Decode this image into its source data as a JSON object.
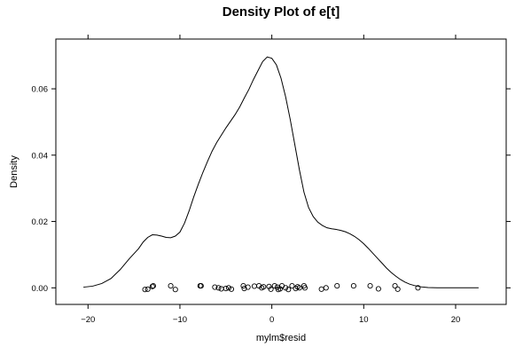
{
  "chart_data": {
    "type": "line",
    "title": "Density Plot of e[t]",
    "xlabel": "mylm$resid",
    "ylabel": "Density",
    "xlim": [
      -23.5,
      25.5
    ],
    "ylim": [
      -0.005,
      0.075
    ],
    "x_ticks": [
      -20,
      -10,
      0,
      10,
      20
    ],
    "x_tick_labels": [
      "−20",
      "−10",
      "0",
      "10",
      "20"
    ],
    "y_ticks": [
      0.0,
      0.02,
      0.04,
      0.06
    ],
    "y_tick_labels": [
      "0.00",
      "0.02",
      "0.04",
      "0.06"
    ],
    "grid": false,
    "series": [
      {
        "kind": "density",
        "x": [
          -20.5,
          -19.5,
          -18.5,
          -17.5,
          -16.5,
          -15.5,
          -14.5,
          -14,
          -13.5,
          -13,
          -12.5,
          -12,
          -11.5,
          -11,
          -10.5,
          -10,
          -9.5,
          -9,
          -8.5,
          -8,
          -7.5,
          -7,
          -6.5,
          -6,
          -5.5,
          -5,
          -4.5,
          -4,
          -3.5,
          -3,
          -2.5,
          -2,
          -1.5,
          -1,
          -0.5,
          0,
          0.5,
          1,
          1.5,
          2,
          2.5,
          3,
          3.5,
          4,
          4.5,
          5,
          5.5,
          6,
          6.5,
          7,
          7.5,
          8,
          8.5,
          9,
          9.5,
          10,
          10.5,
          11,
          11.5,
          12,
          12.5,
          13,
          13.5,
          14,
          14.5,
          15,
          15.5,
          16,
          16.5,
          17,
          17.5,
          18,
          18.5,
          19,
          19.5,
          20,
          20.5,
          21,
          21.5,
          22,
          22.5
        ],
        "y": [
          0.0002,
          0.0005,
          0.0013,
          0.0028,
          0.0055,
          0.0088,
          0.0118,
          0.0138,
          0.0152,
          0.016,
          0.0159,
          0.0156,
          0.0152,
          0.0151,
          0.0156,
          0.0168,
          0.0195,
          0.0232,
          0.0274,
          0.0312,
          0.0348,
          0.0381,
          0.0412,
          0.0438,
          0.046,
          0.0482,
          0.0502,
          0.0522,
          0.0545,
          0.0572,
          0.0598,
          0.0628,
          0.0655,
          0.0682,
          0.0696,
          0.0692,
          0.0672,
          0.0632,
          0.0576,
          0.0508,
          0.0432,
          0.0356,
          0.0288,
          0.0242,
          0.0215,
          0.0198,
          0.0188,
          0.0181,
          0.0178,
          0.0176,
          0.0173,
          0.0169,
          0.0163,
          0.0155,
          0.0145,
          0.0133,
          0.0119,
          0.0104,
          0.0089,
          0.0074,
          0.0059,
          0.0046,
          0.0035,
          0.0025,
          0.0017,
          0.0011,
          0.0007,
          0.0004,
          0.0002,
          0.0001,
          5e-05,
          2e-05,
          1e-05,
          0,
          0,
          0,
          0,
          0,
          0,
          0,
          0
        ]
      },
      {
        "kind": "rug-points",
        "x": [
          -13.8,
          -13.5,
          -13.0,
          -12.9,
          -11.0,
          -10.5,
          -7.8,
          -7.7,
          -6.2,
          -5.8,
          -5.5,
          -5.0,
          -4.7,
          -4.4,
          -3.1,
          -3.0,
          -2.6,
          -1.9,
          -1.4,
          -1.1,
          -0.9,
          -0.3,
          -0.1,
          0.3,
          0.6,
          0.7,
          0.9,
          1.1,
          1.5,
          1.8,
          2.2,
          2.6,
          2.8,
          3.0,
          3.5,
          3.6,
          5.4,
          5.9,
          7.1,
          8.9,
          10.7,
          11.6,
          13.4,
          13.7,
          15.9
        ],
        "y": [
          -0.0005,
          -0.0004,
          0.0004,
          0.0006,
          0.0006,
          -0.0005,
          0.0006,
          0.0006,
          0.0002,
          0.0,
          -0.0003,
          -0.0002,
          0.0,
          -0.0004,
          0.0006,
          -0.0002,
          0.0002,
          0.0005,
          0.0006,
          0.0,
          0.0003,
          0.0004,
          -0.0004,
          0.0006,
          0.0002,
          -0.0005,
          -0.0003,
          0.0006,
          0.0,
          -0.0005,
          0.0006,
          -0.0002,
          0.0003,
          0.0,
          0.0006,
          0.0,
          -0.0004,
          0.0,
          0.0006,
          0.0006,
          0.0006,
          -0.0003,
          0.0006,
          -0.0004,
          0.0
        ]
      }
    ]
  }
}
